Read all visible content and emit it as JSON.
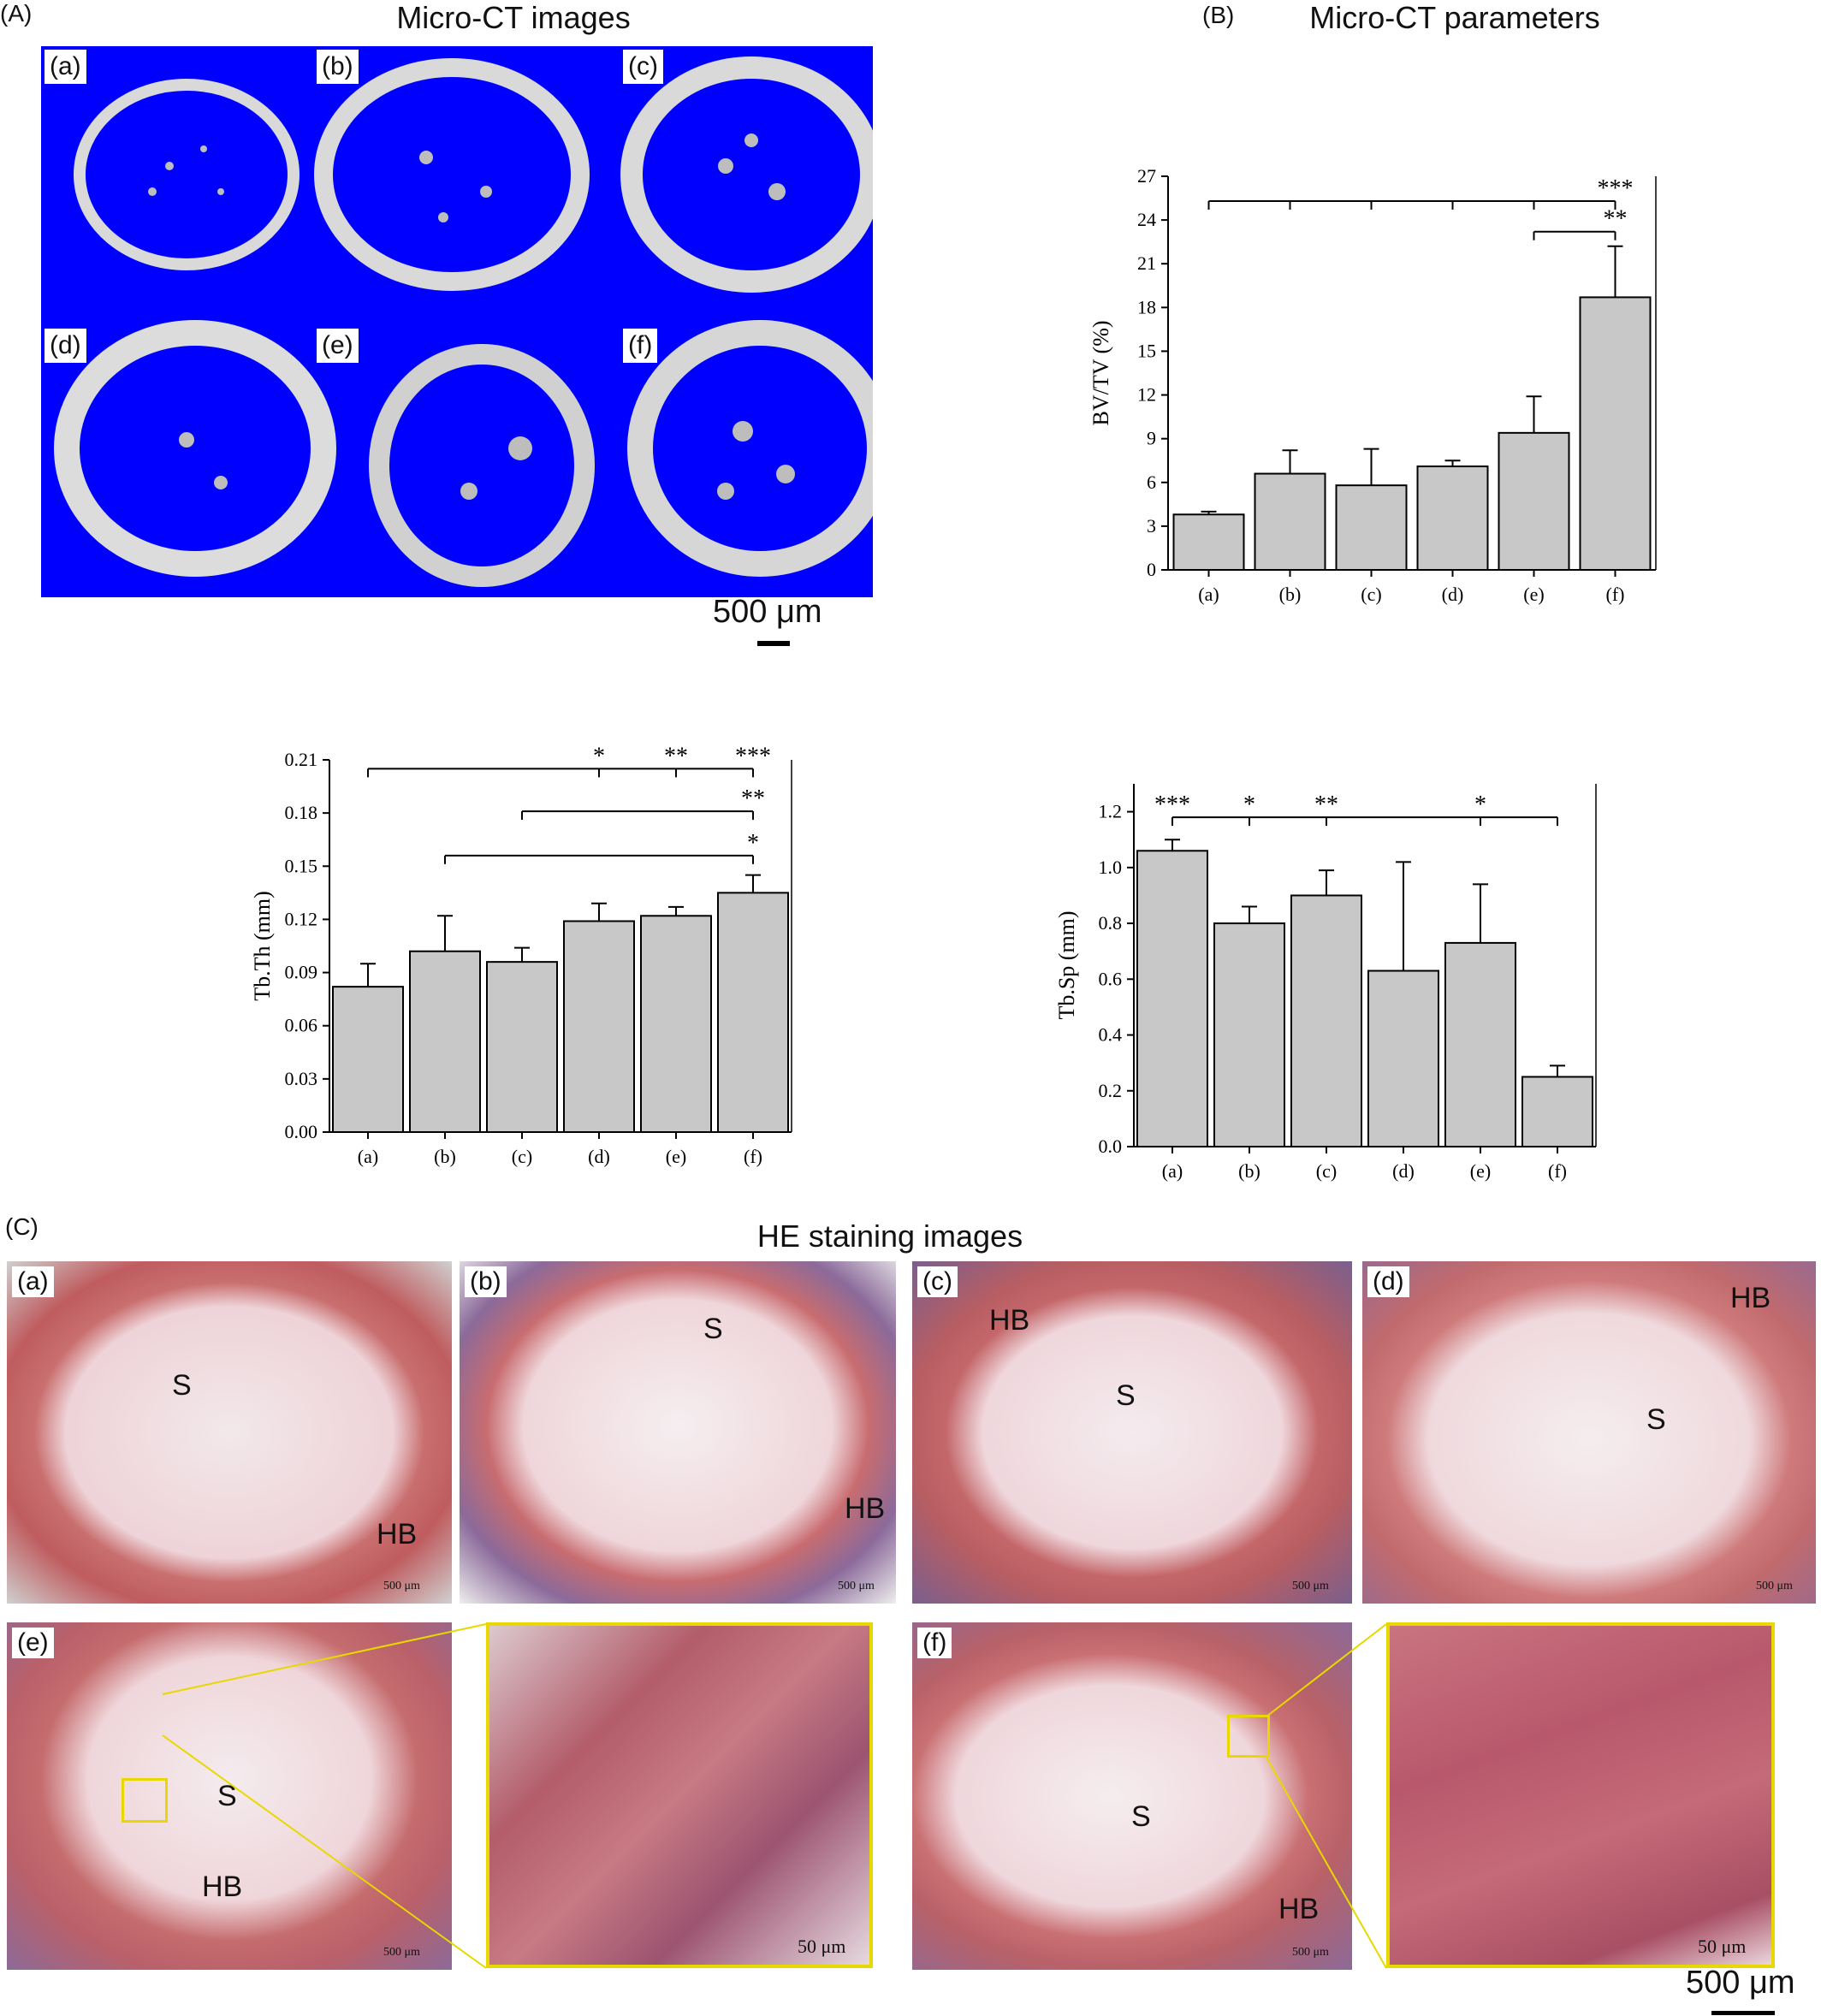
{
  "colors": {
    "ct_background": "#0000ff",
    "bar_fill": "#c8c8c8",
    "he_tissue": "#d68a8a",
    "zoom_frame": "#e8d800"
  },
  "panelA": {
    "letter": "(A)",
    "title": "Micro-CT images",
    "sublabels": [
      "(a)",
      "(b)",
      "(c)",
      "(d)",
      "(e)",
      "(f)"
    ],
    "scale": "500 μm"
  },
  "panelB": {
    "letter": "(B)",
    "title": "Micro-CT parameters"
  },
  "panelC": {
    "letter": "(C)",
    "title": "HE staining images",
    "scale": "500 μm",
    "tiles": [
      {
        "label": "(a)",
        "tags": [
          "S",
          "HB"
        ],
        "scale": "500 μm"
      },
      {
        "label": "(b)",
        "tags": [
          "S",
          "HB"
        ],
        "scale": "500 μm"
      },
      {
        "label": "(c)",
        "tags": [
          "HB",
          "S"
        ],
        "scale": "500 μm"
      },
      {
        "label": "(d)",
        "tags": [
          "HB",
          "S"
        ],
        "scale": "500 μm"
      },
      {
        "label": "(e)",
        "tags": [
          "S",
          "HB"
        ],
        "scale": "500 μm"
      },
      {
        "label": "",
        "tags": [],
        "scale": "50 μm"
      },
      {
        "label": "(f)",
        "tags": [
          "S",
          "HB"
        ],
        "scale": "500 μm"
      },
      {
        "label": "",
        "tags": [],
        "scale": "50 μm"
      }
    ]
  },
  "chart_data": [
    {
      "type": "bar",
      "categories": [
        "(a)",
        "(b)",
        "(c)",
        "(d)",
        "(e)",
        "(f)"
      ],
      "values": [
        3.8,
        6.6,
        5.8,
        7.1,
        9.4,
        18.7
      ],
      "errors": [
        0.2,
        1.6,
        2.5,
        0.4,
        2.5,
        3.5
      ],
      "ylabel": "BV/TV (%)",
      "ylim": [
        0,
        27
      ],
      "yticks": [
        "0",
        "3",
        "6",
        "9",
        "12",
        "15",
        "18",
        "21",
        "24",
        "27"
      ],
      "annotations": [
        {
          "text": "***",
          "y": 25.3
        },
        {
          "text": "**",
          "y": 23.2
        }
      ]
    },
    {
      "type": "bar",
      "categories": [
        "(a)",
        "(b)",
        "(c)",
        "(d)",
        "(e)",
        "(f)"
      ],
      "values": [
        0.082,
        0.102,
        0.096,
        0.119,
        0.122,
        0.135
      ],
      "errors": [
        0.013,
        0.02,
        0.008,
        0.01,
        0.005,
        0.01
      ],
      "ylabel": "Tb.Th (mm)",
      "ylim": [
        0,
        0.21
      ],
      "yticks": [
        "0.00",
        "0.03",
        "0.06",
        "0.09",
        "0.12",
        "0.15",
        "0.18",
        "0.21"
      ],
      "annotations": [
        {
          "text": "*",
          "y": 0.205
        },
        {
          "text": "**",
          "y": 0.205
        },
        {
          "text": "***",
          "y": 0.205
        },
        {
          "text": "**",
          "y": 0.181
        },
        {
          "text": "*",
          "y": 0.156
        }
      ]
    },
    {
      "type": "bar",
      "categories": [
        "(a)",
        "(b)",
        "(c)",
        "(d)",
        "(e)",
        "(f)"
      ],
      "values": [
        1.06,
        0.8,
        0.9,
        0.63,
        0.73,
        0.25
      ],
      "errors": [
        0.04,
        0.06,
        0.09,
        0.39,
        0.21,
        0.04
      ],
      "ylabel": "Tb.Sp (mm)",
      "ylim": [
        0,
        1.3
      ],
      "yticks": [
        "0.0",
        "0.2",
        "0.4",
        "0.6",
        "0.8",
        "1.0",
        "1.2"
      ],
      "annotations": [
        {
          "text": "***",
          "y": 1.18
        },
        {
          "text": "*",
          "y": 1.18
        },
        {
          "text": "**",
          "y": 1.18
        },
        {
          "text": "*",
          "y": 1.18
        }
      ]
    }
  ]
}
